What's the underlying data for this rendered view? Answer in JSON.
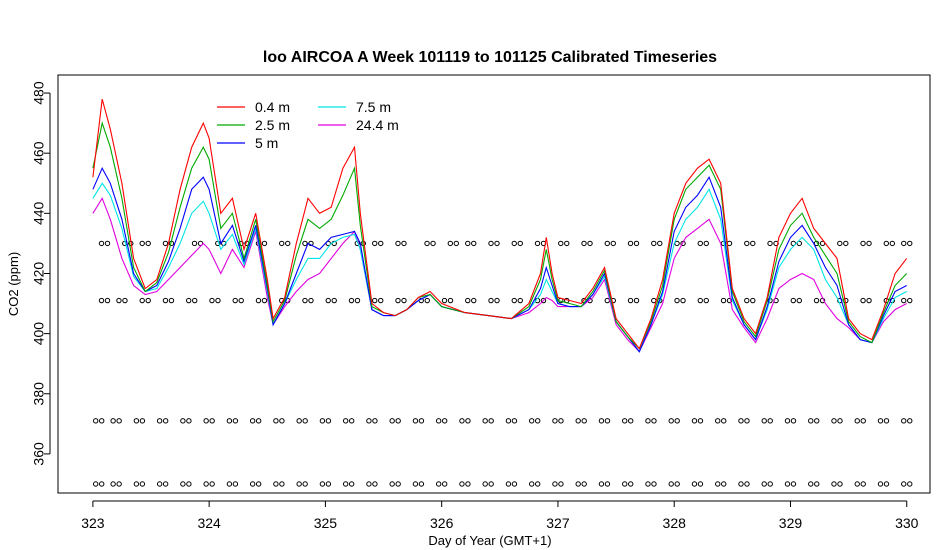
{
  "chart_data": {
    "type": "line",
    "title": "loo AIRCOA A  Week 101119 to 101125  Calibrated Timeseries",
    "xlabel": "Day of Year (GMT+1)",
    "ylabel": "CO2 (ppm)",
    "xlim": [
      322.7,
      330.2
    ],
    "ylim": [
      347,
      486
    ],
    "x_ticks": [
      323,
      324,
      325,
      326,
      327,
      328,
      329,
      330
    ],
    "y_ticks": [
      360,
      380,
      400,
      420,
      440,
      460,
      480
    ],
    "grid": false,
    "legend_placement": "top-left",
    "colors": {
      "0.4 m": "#ff0000",
      "2.5 m": "#00aa00",
      "5 m": "#0000ff",
      "7.5 m": "#00e5e5",
      "24.4 m": "#e000e0",
      "calibration": "#000000"
    },
    "series": [
      {
        "name": "0.4 m",
        "x": [
          323.0,
          323.08,
          323.15,
          323.25,
          323.35,
          323.45,
          323.55,
          323.65,
          323.75,
          323.85,
          323.95,
          324.0,
          324.1,
          324.2,
          324.3,
          324.4,
          324.5,
          324.55,
          324.65,
          324.75,
          324.85,
          324.95,
          325.05,
          325.15,
          325.25,
          325.3,
          325.4,
          325.5,
          325.6,
          325.7,
          325.8,
          325.9,
          326.0,
          326.2,
          326.4,
          326.6,
          326.75,
          326.85,
          326.9,
          326.95,
          327.0,
          327.1,
          327.2,
          327.3,
          327.4,
          327.5,
          327.6,
          327.7,
          327.8,
          327.9,
          328.0,
          328.1,
          328.2,
          328.3,
          328.4,
          328.5,
          328.6,
          328.7,
          328.8,
          328.9,
          329.0,
          329.1,
          329.2,
          329.3,
          329.4,
          329.5,
          329.6,
          329.7,
          329.8,
          329.9,
          330.0
        ],
        "values": [
          452,
          478,
          468,
          450,
          425,
          415,
          418,
          430,
          448,
          462,
          470,
          465,
          440,
          445,
          428,
          440,
          418,
          405,
          412,
          430,
          445,
          440,
          442,
          455,
          462,
          440,
          410,
          407,
          406,
          408,
          412,
          414,
          410,
          407,
          406,
          405,
          410,
          420,
          432,
          420,
          412,
          411,
          410,
          415,
          422,
          405,
          400,
          395,
          405,
          418,
          440,
          450,
          455,
          458,
          450,
          415,
          405,
          400,
          412,
          432,
          440,
          445,
          435,
          430,
          425,
          405,
          400,
          398,
          408,
          420,
          425
        ]
      },
      {
        "name": "2.5 m",
        "x": [
          323.0,
          323.08,
          323.15,
          323.25,
          323.35,
          323.45,
          323.55,
          323.65,
          323.75,
          323.85,
          323.95,
          324.0,
          324.1,
          324.2,
          324.3,
          324.4,
          324.5,
          324.55,
          324.65,
          324.75,
          324.85,
          324.95,
          325.05,
          325.15,
          325.25,
          325.3,
          325.4,
          325.5,
          325.6,
          325.7,
          325.8,
          325.9,
          326.0,
          326.2,
          326.4,
          326.6,
          326.75,
          326.85,
          326.9,
          326.95,
          327.0,
          327.1,
          327.2,
          327.3,
          327.4,
          327.5,
          327.6,
          327.7,
          327.8,
          327.9,
          328.0,
          328.1,
          328.2,
          328.3,
          328.4,
          328.5,
          328.6,
          328.7,
          328.8,
          328.9,
          329.0,
          329.1,
          329.2,
          329.3,
          329.4,
          329.5,
          329.6,
          329.7,
          329.8,
          329.9,
          330.0
        ],
        "values": [
          455,
          470,
          462,
          445,
          422,
          414,
          417,
          427,
          442,
          455,
          462,
          458,
          435,
          440,
          425,
          438,
          416,
          404,
          411,
          426,
          438,
          435,
          438,
          446,
          455,
          436,
          409,
          407,
          406,
          408,
          412,
          413,
          409,
          407,
          406,
          405,
          409,
          418,
          428,
          418,
          411,
          410,
          409,
          414,
          421,
          404,
          399,
          395,
          404,
          416,
          438,
          448,
          452,
          456,
          448,
          414,
          404,
          399,
          411,
          428,
          436,
          440,
          432,
          426,
          420,
          404,
          399,
          397,
          407,
          416,
          420
        ]
      },
      {
        "name": "5 m",
        "x": [
          323.0,
          323.08,
          323.15,
          323.25,
          323.35,
          323.45,
          323.55,
          323.65,
          323.75,
          323.85,
          323.95,
          324.0,
          324.1,
          324.2,
          324.3,
          324.4,
          324.5,
          324.55,
          324.65,
          324.75,
          324.85,
          324.95,
          325.05,
          325.15,
          325.25,
          325.3,
          325.4,
          325.5,
          325.6,
          325.7,
          325.8,
          325.9,
          326.0,
          326.2,
          326.4,
          326.6,
          326.75,
          326.85,
          326.9,
          326.95,
          327.0,
          327.1,
          327.2,
          327.3,
          327.4,
          327.5,
          327.6,
          327.7,
          327.8,
          327.9,
          328.0,
          328.1,
          328.2,
          328.3,
          328.4,
          328.5,
          328.6,
          328.7,
          328.8,
          328.9,
          329.0,
          329.1,
          329.2,
          329.3,
          329.4,
          329.5,
          329.6,
          329.7,
          329.8,
          329.9,
          330.0
        ],
        "values": [
          448,
          455,
          450,
          438,
          420,
          414,
          416,
          424,
          435,
          448,
          452,
          448,
          430,
          436,
          424,
          436,
          415,
          403,
          410,
          420,
          430,
          428,
          432,
          433,
          434,
          430,
          408,
          406,
          406,
          408,
          411,
          413,
          409,
          407,
          406,
          405,
          408,
          415,
          422,
          416,
          410,
          409,
          409,
          413,
          420,
          404,
          399,
          394,
          403,
          414,
          434,
          442,
          446,
          452,
          442,
          412,
          403,
          398,
          409,
          424,
          432,
          436,
          430,
          422,
          416,
          403,
          398,
          397,
          406,
          414,
          416
        ]
      },
      {
        "name": "7.5 m",
        "x": [
          323.0,
          323.08,
          323.15,
          323.25,
          323.35,
          323.45,
          323.55,
          323.65,
          323.75,
          323.85,
          323.95,
          324.0,
          324.1,
          324.2,
          324.3,
          324.4,
          324.5,
          324.55,
          324.65,
          324.75,
          324.85,
          324.95,
          325.05,
          325.15,
          325.25,
          325.3,
          325.4,
          325.5,
          325.6,
          325.7,
          325.8,
          325.9,
          326.0,
          326.2,
          326.4,
          326.6,
          326.75,
          326.85,
          326.9,
          326.95,
          327.0,
          327.1,
          327.2,
          327.3,
          327.4,
          327.5,
          327.6,
          327.7,
          327.8,
          327.9,
          328.0,
          328.1,
          328.2,
          328.3,
          328.4,
          328.5,
          328.6,
          328.7,
          328.8,
          328.9,
          329.0,
          329.1,
          329.2,
          329.3,
          329.4,
          329.5,
          329.6,
          329.7,
          329.8,
          329.9,
          330.0
        ],
        "values": [
          445,
          450,
          446,
          435,
          419,
          414,
          415,
          422,
          430,
          440,
          444,
          440,
          428,
          433,
          423,
          435,
          414,
          403,
          410,
          418,
          425,
          425,
          430,
          432,
          433,
          428,
          408,
          406,
          406,
          408,
          411,
          413,
          409,
          407,
          406,
          405,
          408,
          413,
          418,
          414,
          410,
          409,
          409,
          413,
          419,
          404,
          399,
          394,
          403,
          413,
          430,
          438,
          442,
          448,
          438,
          411,
          403,
          398,
          408,
          422,
          428,
          432,
          428,
          418,
          412,
          403,
          398,
          397,
          405,
          412,
          414
        ]
      },
      {
        "name": "24.4 m",
        "x": [
          323.0,
          323.08,
          323.15,
          323.25,
          323.35,
          323.45,
          323.55,
          323.65,
          323.75,
          323.85,
          323.95,
          324.0,
          324.1,
          324.2,
          324.3,
          324.4,
          324.5,
          324.55,
          324.65,
          324.75,
          324.85,
          324.95,
          325.05,
          325.15,
          325.25,
          325.3,
          325.4,
          325.5,
          325.6,
          325.7,
          325.8,
          325.9,
          326.0,
          326.2,
          326.4,
          326.6,
          326.75,
          326.85,
          326.9,
          326.95,
          327.0,
          327.1,
          327.2,
          327.3,
          327.4,
          327.5,
          327.6,
          327.7,
          327.8,
          327.9,
          328.0,
          328.1,
          328.2,
          328.3,
          328.4,
          328.5,
          328.6,
          328.7,
          328.8,
          328.9,
          329.0,
          329.1,
          329.2,
          329.3,
          329.4,
          329.5,
          329.6,
          329.7,
          329.8,
          329.9,
          330.0
        ],
        "values": [
          440,
          445,
          438,
          425,
          416,
          413,
          414,
          418,
          422,
          426,
          430,
          428,
          420,
          428,
          422,
          434,
          412,
          403,
          409,
          414,
          418,
          420,
          425,
          430,
          434,
          428,
          408,
          406,
          406,
          408,
          411,
          413,
          409,
          407,
          406,
          405,
          407,
          410,
          412,
          411,
          409,
          409,
          409,
          412,
          418,
          403,
          398,
          394,
          402,
          410,
          425,
          432,
          435,
          438,
          430,
          408,
          402,
          397,
          405,
          415,
          418,
          420,
          418,
          410,
          405,
          402,
          398,
          397,
          404,
          408,
          410
        ]
      }
    ],
    "calibration_points": [
      {
        "y": 430,
        "x": [
          323.1,
          323.3,
          323.45,
          323.65,
          323.9,
          324.1,
          324.3,
          324.45,
          324.65,
          324.85,
          325.05,
          325.3,
          325.45,
          325.65,
          325.9,
          326.1,
          326.25,
          326.45,
          326.65,
          326.85,
          327.05,
          327.25,
          327.45,
          327.65,
          327.85,
          328.05,
          328.25,
          328.45,
          328.65,
          328.85,
          329.05,
          329.25,
          329.45,
          329.65,
          329.85,
          330.0
        ]
      },
      {
        "y": 411,
        "x": [
          323.1,
          323.25,
          323.45,
          323.65,
          323.85,
          324.05,
          324.25,
          324.45,
          324.65,
          324.85,
          325.05,
          325.25,
          325.45,
          325.65,
          325.85,
          326.05,
          326.25,
          326.45,
          326.65,
          326.85,
          327.05,
          327.25,
          327.45,
          327.65,
          327.85,
          328.05,
          328.25,
          328.45,
          328.65,
          328.85,
          329.05,
          329.25,
          329.45,
          329.65,
          329.85,
          330.0
        ]
      },
      {
        "y": 371,
        "x": [
          323.05,
          323.2,
          323.4,
          323.6,
          323.8,
          324.0,
          324.2,
          324.4,
          324.6,
          324.8,
          325.0,
          325.2,
          325.4,
          325.6,
          325.8,
          326.0,
          326.2,
          326.4,
          326.6,
          326.8,
          327.0,
          327.2,
          327.4,
          327.6,
          327.8,
          328.0,
          328.2,
          328.4,
          328.6,
          328.8,
          329.0,
          329.2,
          329.4,
          329.6,
          329.8,
          330.0
        ]
      },
      {
        "y": 350,
        "x": [
          323.05,
          323.2,
          323.4,
          323.6,
          323.8,
          324.0,
          324.2,
          324.4,
          324.6,
          324.8,
          325.0,
          325.2,
          325.4,
          325.6,
          325.8,
          326.0,
          326.2,
          326.4,
          326.6,
          326.8,
          327.0,
          327.2,
          327.4,
          327.6,
          327.8,
          328.0,
          328.2,
          328.4,
          328.6,
          328.8,
          329.0,
          329.2,
          329.4,
          329.6,
          329.8,
          330.0
        ]
      }
    ]
  }
}
